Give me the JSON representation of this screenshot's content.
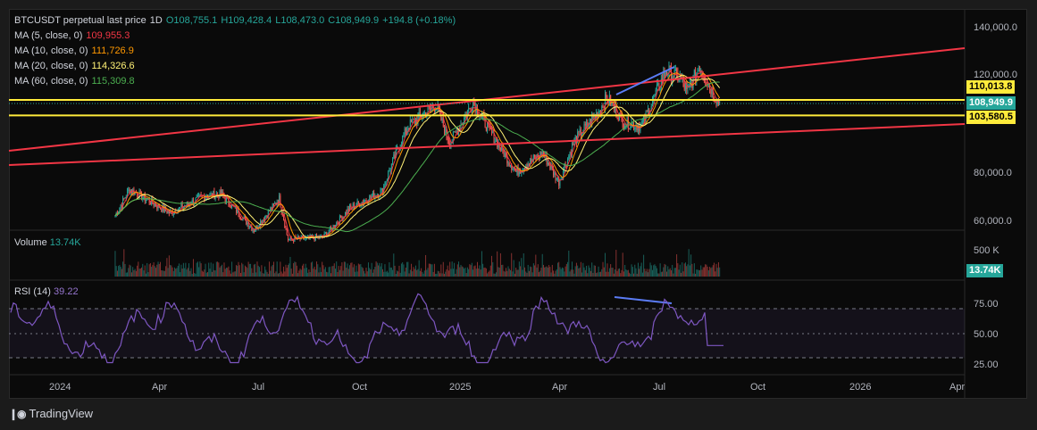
{
  "header": {
    "symbol": "BTCUSDT perpetual last price",
    "interval": "1D",
    "open": "O108,755.1",
    "high": "H109,428.4",
    "low": "L108,473.0",
    "close": "C108,949.9",
    "change": "+194.8 (+0.18%)"
  },
  "ma_legend": [
    {
      "label": "MA (5, close, 0)",
      "value": "109,955.3",
      "color": "#f23645"
    },
    {
      "label": "MA (10, close, 0)",
      "value": "111,726.9",
      "color": "#ff9800"
    },
    {
      "label": "MA (20, close, 0)",
      "value": "114,326.6",
      "color": "#fff176"
    },
    {
      "label": "MA (60, close, 0)",
      "value": "115,309.8",
      "color": "#4caf50"
    }
  ],
  "volume": {
    "label": "Volume",
    "value": "13.74K",
    "axis_label": "500 K",
    "tag": "13.74K"
  },
  "rsi": {
    "label": "RSI (14)",
    "value": "39.22",
    "ticks": [
      "75.00",
      "50.00",
      "25.00"
    ]
  },
  "price_axis": {
    "ticks": [
      "140,000.0",
      "120,000.0",
      "80,000.0",
      "60,000.0"
    ]
  },
  "price_tags": [
    {
      "value": "110,013.8",
      "bg": "#ffeb3b",
      "fg": "#000000"
    },
    {
      "value": "108,949.9",
      "bg": "#26a69a",
      "fg": "#ffffff"
    },
    {
      "value": "103,580.5",
      "bg": "#ffeb3b",
      "fg": "#000000"
    }
  ],
  "time_axis": {
    "ticks": [
      "2024",
      "Apr",
      "Jul",
      "Oct",
      "2025",
      "Apr",
      "Jul",
      "Oct",
      "2026",
      "Apr"
    ]
  },
  "footer": {
    "brand": "TradingView"
  },
  "chart_data": {
    "type": "line",
    "title": "BTCUSDT perpetual last price",
    "series": [
      {
        "name": "BTCUSDT",
        "points": [
          [
            "2024-03-01",
            62000
          ],
          [
            "2024-03-14",
            73000
          ],
          [
            "2024-04-01",
            68000
          ],
          [
            "2024-04-20",
            63000
          ],
          [
            "2024-05-20",
            70000
          ],
          [
            "2024-06-05",
            71000
          ],
          [
            "2024-07-05",
            56000
          ],
          [
            "2024-07-28",
            69000
          ],
          [
            "2024-08-05",
            52000
          ],
          [
            "2024-09-06",
            53000
          ],
          [
            "2024-09-30",
            65000
          ],
          [
            "2024-10-29",
            72000
          ],
          [
            "2024-11-12",
            89000
          ],
          [
            "2024-11-22",
            99000
          ],
          [
            "2024-12-17",
            108000
          ],
          [
            "2024-12-30",
            92000
          ],
          [
            "2025-01-20",
            109000
          ],
          [
            "2025-02-03",
            98000
          ],
          [
            "2025-02-28",
            80000
          ],
          [
            "2025-03-24",
            88000
          ],
          [
            "2025-04-08",
            76000
          ],
          [
            "2025-04-22",
            93000
          ],
          [
            "2025-05-12",
            104000
          ],
          [
            "2025-05-22",
            111000
          ],
          [
            "2025-06-05",
            101000
          ],
          [
            "2025-06-22",
            99000
          ],
          [
            "2025-07-14",
            122000
          ],
          [
            "2025-07-28",
            119000
          ],
          [
            "2025-08-02",
            113000
          ],
          [
            "2025-08-14",
            124000
          ],
          [
            "2025-08-28",
            111000
          ],
          [
            "2025-09-01",
            108950
          ]
        ]
      }
    ],
    "horizontal_levels": [
      110013.8,
      103580.5
    ],
    "ylim": [
      55000,
      143000
    ],
    "rsi_levels": [
      70,
      50,
      30
    ],
    "legend": "top-left"
  }
}
